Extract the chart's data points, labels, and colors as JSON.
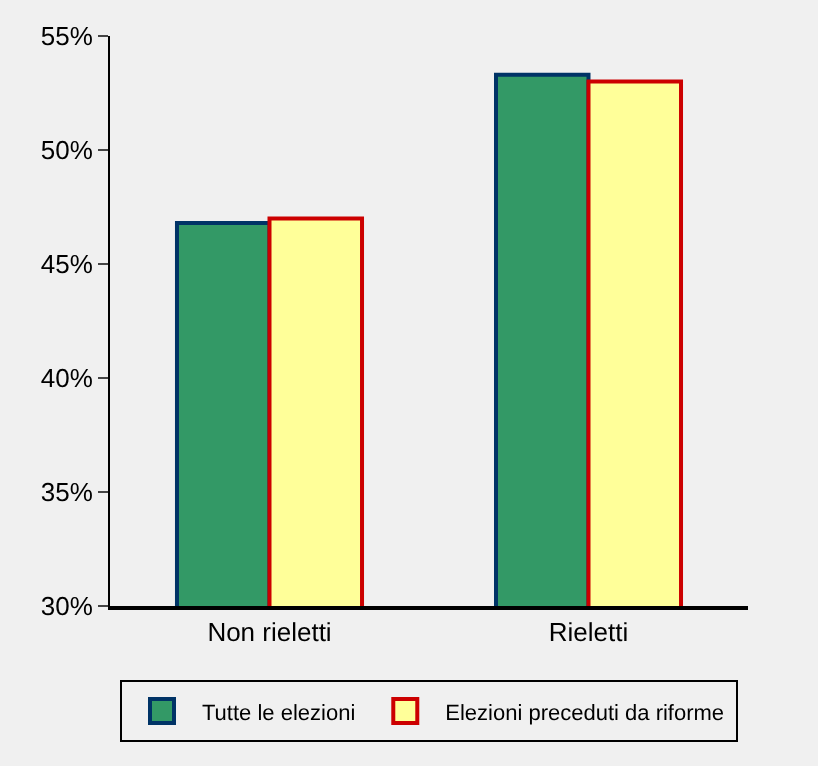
{
  "chart_data": {
    "type": "bar",
    "categories": [
      "Non rieletti",
      "Rieletti"
    ],
    "series": [
      {
        "name": "Tutte le elezioni",
        "color": "#339966",
        "values": [
          46.8,
          53.3
        ]
      },
      {
        "name": "Elezioni preceduti da riforme",
        "color": "#ffff99",
        "values": [
          47.0,
          53.0
        ]
      }
    ],
    "ylim": [
      30,
      55
    ],
    "yticks": [
      {
        "value": 30,
        "label": "30%"
      },
      {
        "value": 35,
        "label": "35%"
      },
      {
        "value": 40,
        "label": "40%"
      },
      {
        "value": 45,
        "label": "45%"
      },
      {
        "value": 50,
        "label": "50%"
      },
      {
        "value": 55,
        "label": "55%"
      }
    ],
    "grid": false,
    "legend": "bottom"
  }
}
